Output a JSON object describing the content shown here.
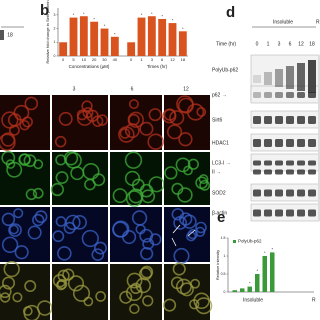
{
  "panel_labels": [
    "b",
    "d",
    "e"
  ],
  "top_left": {
    "lane_label": "18"
  },
  "chart_data": [
    {
      "type": "bar",
      "ylabel": "Relative fold change in Sirt6 protein",
      "color": "#d9531e",
      "ylim": [
        0,
        3.5
      ],
      "yticks": [
        0,
        1,
        2,
        3
      ],
      "groups": [
        {
          "label": "Concentrations (μM)",
          "categories": [
            "0",
            "5",
            "10",
            "20",
            "30",
            "40"
          ],
          "values": [
            1.0,
            2.8,
            2.9,
            2.5,
            2.0,
            1.4
          ],
          "significance": [
            null,
            "*",
            "*",
            "*",
            "*",
            "*"
          ]
        },
        {
          "label": "Times (hr)",
          "categories": [
            "0",
            "1",
            "3",
            "6",
            "12",
            "18"
          ],
          "values": [
            1.0,
            2.8,
            2.9,
            2.7,
            2.4,
            1.8
          ],
          "significance": [
            null,
            "*",
            "*",
            "*",
            "*",
            "*"
          ]
        }
      ]
    },
    {
      "type": "bar",
      "ylabel": "Relative intensity",
      "ylim": [
        0,
        1.5
      ],
      "yticks": [
        0,
        0.5,
        1,
        1.5
      ],
      "categories": [
        null,
        null,
        null,
        null,
        null,
        null
      ],
      "series": [
        {
          "name": "PolyUb-p62",
          "color": "#3a9a3a",
          "values": [
            0.05,
            0.1,
            0.15,
            0.5,
            1.0,
            1.1
          ]
        }
      ],
      "significance": [
        null,
        null,
        "*",
        "*",
        "*",
        "*"
      ],
      "group_labels": [
        "Insoluble",
        "R"
      ]
    }
  ],
  "blot": {
    "header": "Insoluble",
    "header_cut": "R",
    "axis_label": "Time (hr)",
    "lanes": [
      "0",
      "1",
      "3",
      "6",
      "12",
      "18"
    ],
    "rows": [
      "PolyUb-p62",
      "p62 →",
      "Sirt6",
      "HDAC1",
      "LC3-I →",
      "II →",
      "SOD2",
      "β-actin"
    ]
  },
  "microscopy": {
    "time_labels": [
      "3",
      "6",
      "12"
    ]
  }
}
